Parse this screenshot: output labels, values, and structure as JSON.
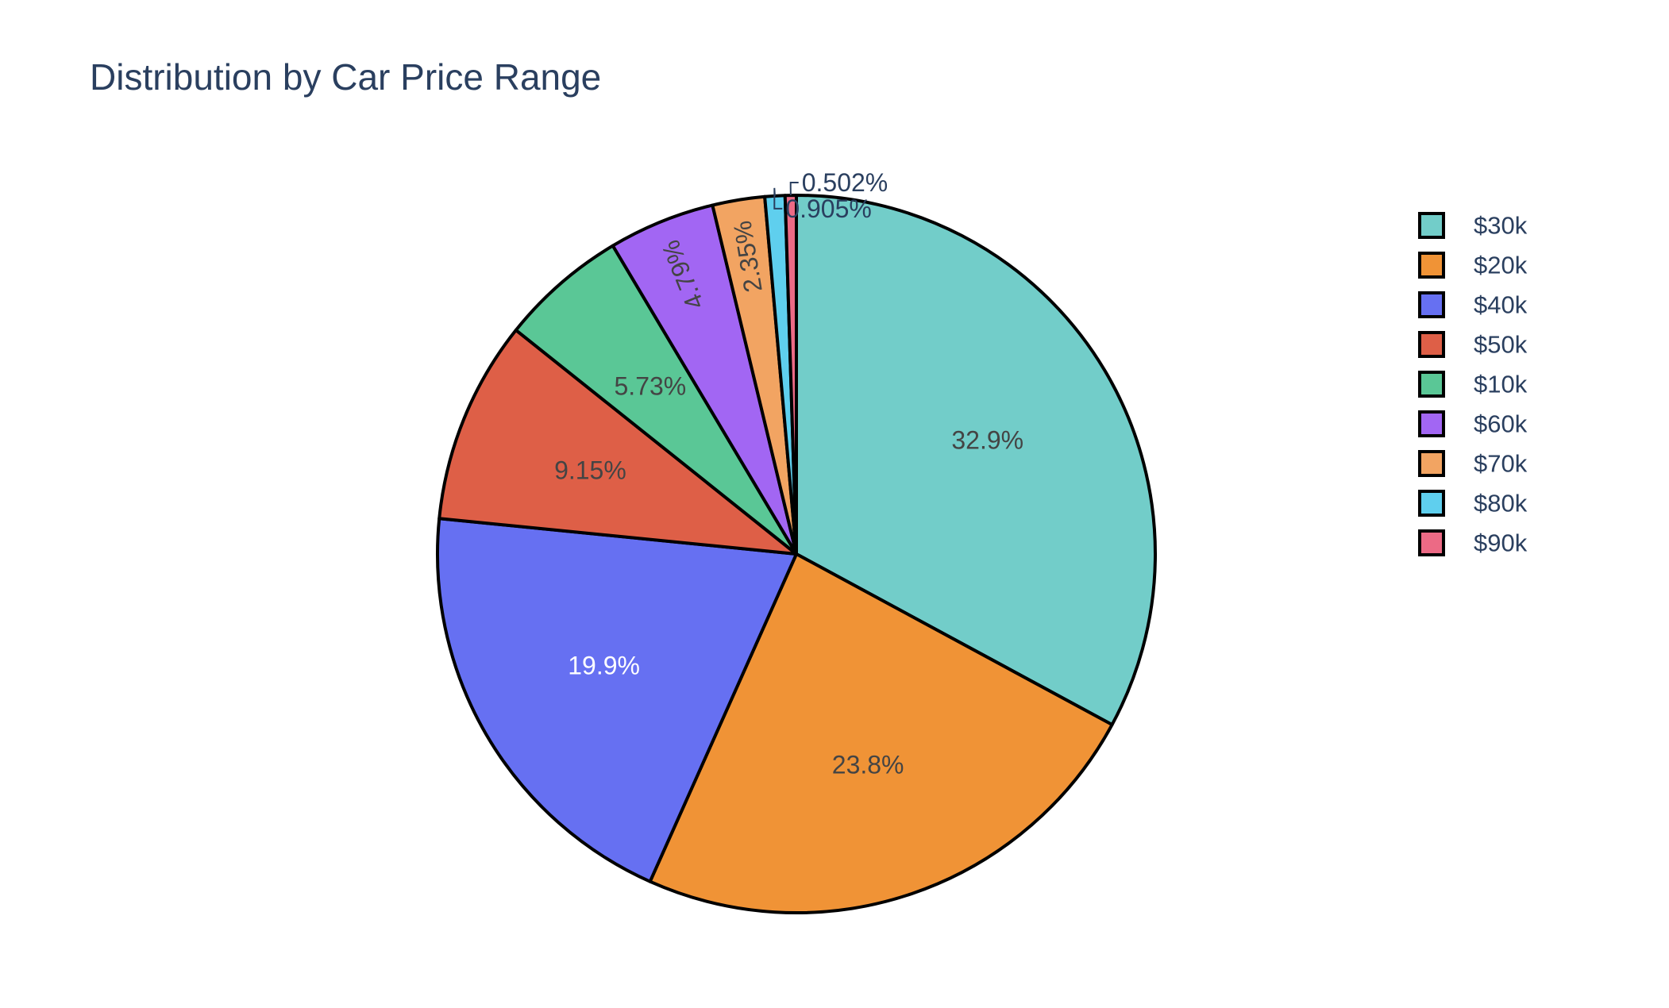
{
  "chart_data": {
    "type": "pie",
    "title": "Distribution by Car Price Range",
    "legend_position": "right",
    "slices": [
      {
        "label": "$30k",
        "value": 32.9,
        "text": "32.9%",
        "color": "#72cdc9",
        "text_color": "#444444"
      },
      {
        "label": "$20k",
        "value": 23.8,
        "text": "23.8%",
        "color": "#f09336",
        "text_color": "#444444"
      },
      {
        "label": "$40k",
        "value": 19.9,
        "text": "19.9%",
        "color": "#6670f2",
        "text_color": "#ffffff"
      },
      {
        "label": "$50k",
        "value": 9.15,
        "text": "9.15%",
        "color": "#de5f47",
        "text_color": "#444444"
      },
      {
        "label": "$10k",
        "value": 5.73,
        "text": "5.73%",
        "color": "#5ac796",
        "text_color": "#444444"
      },
      {
        "label": "$60k",
        "value": 4.79,
        "text": "4.79%",
        "color": "#a266f3",
        "text_color": "#444444"
      },
      {
        "label": "$70k",
        "value": 2.35,
        "text": "2.35%",
        "color": "#f2a462",
        "text_color": "#444444"
      },
      {
        "label": "$80k",
        "value": 0.905,
        "text": "0.905%",
        "color": "#5fcfee",
        "text_color": "#2a3f5f"
      },
      {
        "label": "$90k",
        "value": 0.502,
        "text": "0.502%",
        "color": "#ec6a85",
        "text_color": "#2a3f5f"
      }
    ]
  }
}
